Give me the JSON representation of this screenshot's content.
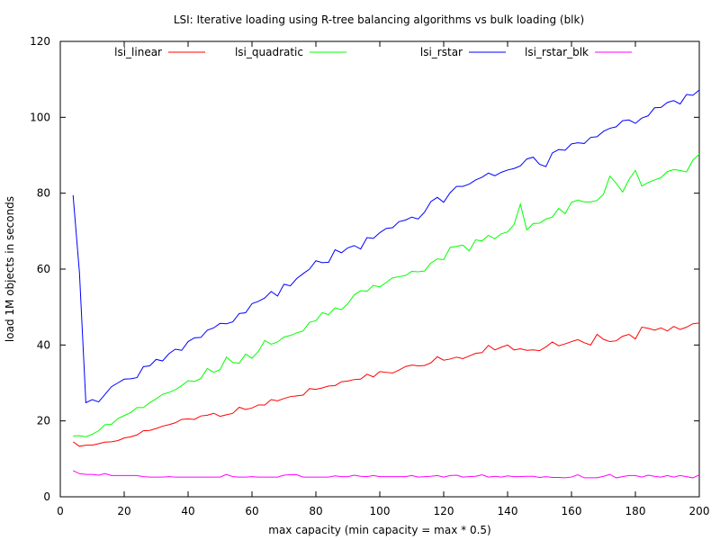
{
  "chart_data": {
    "type": "line",
    "title": "LSI: Iterative loading using R-tree balancing algorithms vs bulk loading (blk)",
    "xlabel": "max capacity (min capacity = max * 0.5)",
    "ylabel": "load 1M objects in seconds",
    "xlim": [
      0,
      200
    ],
    "ylim": [
      0,
      120
    ],
    "xticks": [
      0,
      20,
      40,
      60,
      80,
      100,
      120,
      140,
      160,
      180,
      200
    ],
    "yticks": [
      0,
      20,
      40,
      60,
      80,
      100,
      120
    ],
    "grid": false,
    "legend_placement": "top",
    "series": [
      {
        "name": "lsi_linear",
        "color": "#ff0000",
        "x": [
          4,
          6,
          8,
          10,
          12,
          14,
          16,
          18,
          20,
          22,
          24,
          26,
          28,
          30,
          32,
          34,
          36,
          38,
          40,
          42,
          44,
          46,
          48,
          50,
          52,
          54,
          56,
          58,
          60,
          62,
          64,
          66,
          68,
          70,
          72,
          74,
          76,
          78,
          80,
          82,
          84,
          86,
          88,
          90,
          92,
          94,
          96,
          98,
          100,
          102,
          104,
          106,
          108,
          110,
          112,
          114,
          116,
          118,
          120,
          122,
          124,
          126,
          128,
          130,
          132,
          134,
          136,
          138,
          140,
          142,
          144,
          146,
          148,
          150,
          152,
          154,
          156,
          158,
          160,
          162,
          164,
          166,
          168,
          170,
          172,
          174,
          176,
          178,
          180,
          182,
          184,
          186,
          188,
          190,
          192,
          194,
          196,
          198,
          200
        ],
        "y": [
          14.5,
          13.3,
          13.6,
          13.6,
          14.0,
          14.4,
          14.5,
          14.8,
          15.5,
          15.8,
          16.3,
          17.4,
          17.5,
          18.0,
          18.6,
          19.0,
          19.5,
          20.4,
          20.5,
          20.4,
          21.3,
          21.5,
          22.0,
          21.2,
          21.6,
          22.0,
          23.6,
          23.0,
          23.4,
          24.2,
          24.2,
          25.6,
          25.3,
          25.9,
          26.4,
          26.6,
          26.8,
          28.5,
          28.3,
          28.7,
          29.2,
          29.3,
          30.3,
          30.5,
          30.9,
          31.0,
          32.3,
          31.6,
          33.0,
          32.8,
          32.6,
          33.4,
          34.3,
          34.7,
          34.5,
          34.6,
          35.3,
          36.9,
          36.0,
          36.3,
          36.8,
          36.4,
          37.1,
          37.8,
          38.0,
          39.9,
          38.7,
          39.4,
          40.0,
          38.7,
          39.0,
          38.6,
          38.7,
          38.5,
          39.5,
          40.8,
          39.8,
          40.3,
          40.9,
          41.4,
          40.6,
          40.0,
          42.8,
          41.5,
          40.9,
          41.1,
          42.3,
          42.8,
          41.6,
          44.7,
          44.4,
          43.9,
          44.5,
          43.7,
          44.9,
          44.1,
          44.7,
          45.6,
          45.8
        ]
      },
      {
        "name": "lsi_quadratic",
        "color": "#00ff00",
        "x": [
          4,
          6,
          8,
          10,
          12,
          14,
          16,
          18,
          20,
          22,
          24,
          26,
          28,
          30,
          32,
          34,
          36,
          38,
          40,
          42,
          44,
          46,
          48,
          50,
          52,
          54,
          56,
          58,
          60,
          62,
          64,
          66,
          68,
          70,
          72,
          74,
          76,
          78,
          80,
          82,
          84,
          86,
          88,
          90,
          92,
          94,
          96,
          98,
          100,
          102,
          104,
          106,
          108,
          110,
          112,
          114,
          116,
          118,
          120,
          122,
          124,
          126,
          128,
          130,
          132,
          134,
          136,
          138,
          140,
          142,
          144,
          146,
          148,
          150,
          152,
          154,
          156,
          158,
          160,
          162,
          164,
          166,
          168,
          170,
          172,
          174,
          176,
          178,
          180,
          182,
          184,
          186,
          188,
          190,
          192,
          194,
          196,
          198,
          200
        ],
        "y": [
          16.0,
          16.1,
          15.8,
          16.5,
          17.4,
          19.0,
          19.1,
          20.6,
          21.4,
          22.2,
          23.5,
          23.5,
          24.8,
          25.8,
          27.0,
          27.5,
          28.2,
          29.3,
          30.6,
          30.4,
          31.2,
          33.8,
          32.8,
          33.5,
          36.8,
          35.4,
          35.2,
          37.6,
          36.5,
          38.3,
          41.2,
          40.2,
          40.8,
          42.1,
          42.5,
          43.2,
          43.7,
          46.0,
          46.4,
          48.5,
          48.0,
          49.8,
          49.3,
          50.9,
          53.2,
          54.3,
          54.2,
          55.7,
          55.3,
          56.5,
          57.7,
          58.0,
          58.3,
          59.4,
          59.3,
          59.5,
          61.6,
          62.7,
          62.5,
          65.7,
          66.0,
          66.3,
          64.8,
          67.7,
          67.4,
          68.9,
          68.0,
          69.3,
          69.8,
          71.7,
          77.1,
          70.3,
          72.0,
          72.1,
          73.2,
          73.7,
          76.0,
          74.6,
          77.6,
          78.2,
          77.7,
          77.7,
          78.1,
          79.7,
          84.5,
          82.6,
          80.3,
          83.6,
          86.0,
          81.9,
          82.8,
          83.5,
          84.1,
          85.7,
          86.2,
          86.0,
          85.6,
          88.7,
          90.3
        ]
      },
      {
        "name": "lsi_rstar",
        "color": "#0000ff",
        "x": [
          4,
          6,
          8,
          10,
          12,
          14,
          16,
          18,
          20,
          22,
          24,
          26,
          28,
          30,
          32,
          34,
          36,
          38,
          40,
          42,
          44,
          46,
          48,
          50,
          52,
          54,
          56,
          58,
          60,
          62,
          64,
          66,
          68,
          70,
          72,
          74,
          76,
          78,
          80,
          82,
          84,
          86,
          88,
          90,
          92,
          94,
          96,
          98,
          100,
          102,
          104,
          106,
          108,
          110,
          112,
          114,
          116,
          118,
          120,
          122,
          124,
          126,
          128,
          130,
          132,
          134,
          136,
          138,
          140,
          142,
          144,
          146,
          148,
          150,
          152,
          154,
          156,
          158,
          160,
          162,
          164,
          166,
          168,
          170,
          172,
          174,
          176,
          178,
          180,
          182,
          184,
          186,
          188,
          190,
          192,
          194,
          196,
          198,
          200
        ],
        "y": [
          79.5,
          59.0,
          24.8,
          25.6,
          25.0,
          27.0,
          29.0,
          30.0,
          31.0,
          31.1,
          31.4,
          34.3,
          34.5,
          36.2,
          35.8,
          37.7,
          38.9,
          38.6,
          40.9,
          41.9,
          42.0,
          43.9,
          44.5,
          45.7,
          45.6,
          46.1,
          48.3,
          48.5,
          50.9,
          51.5,
          52.4,
          54.1,
          52.9,
          56.0,
          55.6,
          57.5,
          58.8,
          60.0,
          62.2,
          61.7,
          61.8,
          65.1,
          64.3,
          65.6,
          66.2,
          65.3,
          68.3,
          68.1,
          69.6,
          70.7,
          70.9,
          72.5,
          72.9,
          73.7,
          73.2,
          75.0,
          77.8,
          78.9,
          77.6,
          80.1,
          81.8,
          81.8,
          82.4,
          83.5,
          84.2,
          85.3,
          84.6,
          85.5,
          86.1,
          86.5,
          87.2,
          89.0,
          89.5,
          87.6,
          87.0,
          90.6,
          91.5,
          91.3,
          93.0,
          93.3,
          93.1,
          94.7,
          94.9,
          96.3,
          97.1,
          97.5,
          99.1,
          99.3,
          98.4,
          99.8,
          100.4,
          102.5,
          102.6,
          103.9,
          104.4,
          103.5,
          106.0,
          105.8,
          107.2
        ]
      },
      {
        "name": "lsi_rstar_blk",
        "color": "#ff00ff",
        "x": [
          4,
          6,
          8,
          10,
          12,
          14,
          16,
          18,
          20,
          22,
          24,
          26,
          28,
          30,
          32,
          34,
          36,
          38,
          40,
          42,
          44,
          46,
          48,
          50,
          52,
          54,
          56,
          58,
          60,
          62,
          64,
          66,
          68,
          70,
          72,
          74,
          76,
          78,
          80,
          82,
          84,
          86,
          88,
          90,
          92,
          94,
          96,
          98,
          100,
          102,
          104,
          106,
          108,
          110,
          112,
          114,
          116,
          118,
          120,
          122,
          124,
          126,
          128,
          130,
          132,
          134,
          136,
          138,
          140,
          142,
          144,
          146,
          148,
          150,
          152,
          154,
          156,
          158,
          160,
          162,
          164,
          166,
          168,
          170,
          172,
          174,
          176,
          178,
          180,
          182,
          184,
          186,
          188,
          190,
          192,
          194,
          196,
          198,
          200
        ],
        "y": [
          6.9,
          6.1,
          5.9,
          5.9,
          5.7,
          6.1,
          5.6,
          5.6,
          5.6,
          5.6,
          5.6,
          5.3,
          5.2,
          5.2,
          5.2,
          5.3,
          5.2,
          5.2,
          5.2,
          5.2,
          5.2,
          5.2,
          5.2,
          5.2,
          5.9,
          5.3,
          5.2,
          5.2,
          5.3,
          5.2,
          5.2,
          5.2,
          5.2,
          5.7,
          5.8,
          5.8,
          5.2,
          5.2,
          5.2,
          5.2,
          5.2,
          5.5,
          5.3,
          5.3,
          5.7,
          5.4,
          5.3,
          5.6,
          5.3,
          5.3,
          5.3,
          5.3,
          5.3,
          5.6,
          5.2,
          5.3,
          5.4,
          5.6,
          5.2,
          5.6,
          5.7,
          5.2,
          5.3,
          5.4,
          5.8,
          5.2,
          5.4,
          5.2,
          5.5,
          5.3,
          5.3,
          5.4,
          5.4,
          5.1,
          5.3,
          5.1,
          5.1,
          5.0,
          5.2,
          5.8,
          5.0,
          5.0,
          5.0,
          5.4,
          5.9,
          5.0,
          5.3,
          5.6,
          5.6,
          5.2,
          5.7,
          5.4,
          5.2,
          5.6,
          5.2,
          5.6,
          5.3,
          5.0,
          5.8
        ]
      }
    ]
  }
}
